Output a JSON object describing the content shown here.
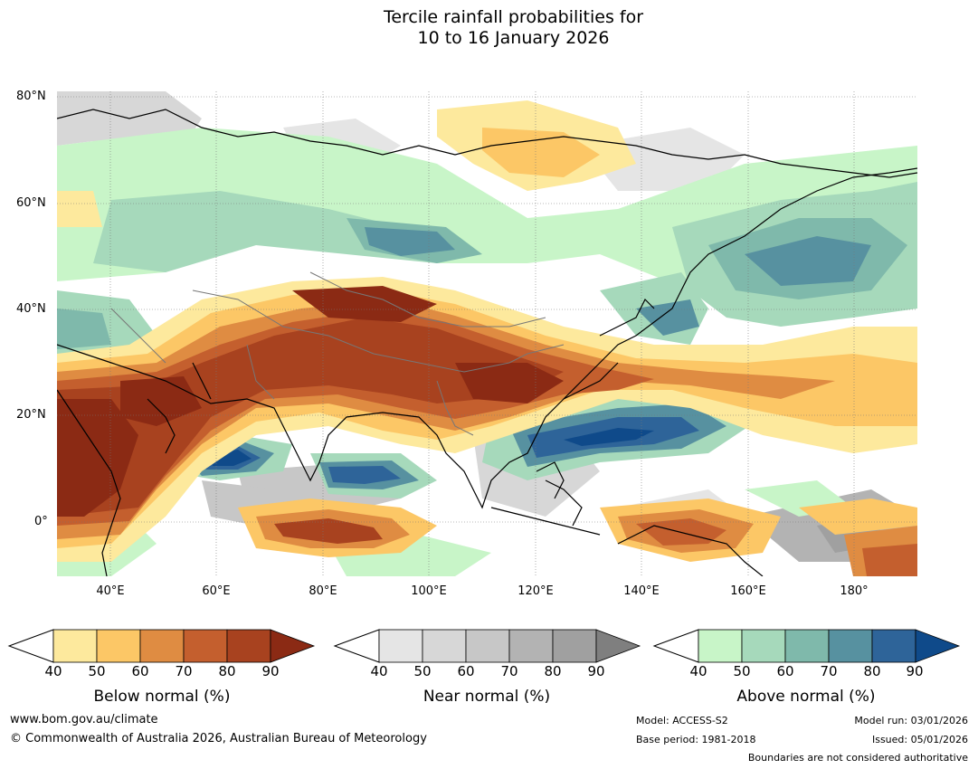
{
  "title": {
    "line1": "Tercile rainfall probabilities for",
    "line2": "10 to 16 January 2026"
  },
  "map": {
    "latitude_labels": [
      "80°N",
      "60°N",
      "40°N",
      "20°N",
      "0°"
    ],
    "longitude_labels": [
      "40°E",
      "60°E",
      "80°E",
      "100°E",
      "120°E",
      "140°E",
      "160°E",
      "180°"
    ],
    "colors": {
      "below": [
        "#fde99d",
        "#fcc766",
        "#df8c42",
        "#c45f2e",
        "#a8421f",
        "#8b2a14"
      ],
      "near": [
        "#e5e5e5",
        "#d7d7d7",
        "#c7c7c7",
        "#b3b3b3",
        "#a0a0a0",
        "#7f7f7f"
      ],
      "above": [
        "#c8f5c8",
        "#a6d9bb",
        "#7fb9ab",
        "#5791a0",
        "#2e6499",
        "#0f4a8a"
      ],
      "ocean_land_background": "#ffffff",
      "coastline": "#000000",
      "borders": "#777777"
    }
  },
  "legends": {
    "below": {
      "label": "Below normal (%)",
      "ticks": [
        "40",
        "50",
        "60",
        "70",
        "80",
        "90"
      ]
    },
    "near": {
      "label": "Near normal (%)",
      "ticks": [
        "40",
        "50",
        "60",
        "70",
        "80",
        "90"
      ]
    },
    "above": {
      "label": "Above normal (%)",
      "ticks": [
        "40",
        "50",
        "60",
        "70",
        "80",
        "90"
      ]
    }
  },
  "footer": {
    "website": "www.bom.gov.au/climate",
    "copyright": "© Commonwealth of Australia 2026, Australian Bureau of Meteorology",
    "model": "Model: ACCESS-S2",
    "base_period": "Base period: 1981-2018",
    "model_run": "Model run: 03/01/2026",
    "issued": "Issued: 05/01/2026",
    "disclaimer": "Boundaries are not considered authoritative"
  }
}
